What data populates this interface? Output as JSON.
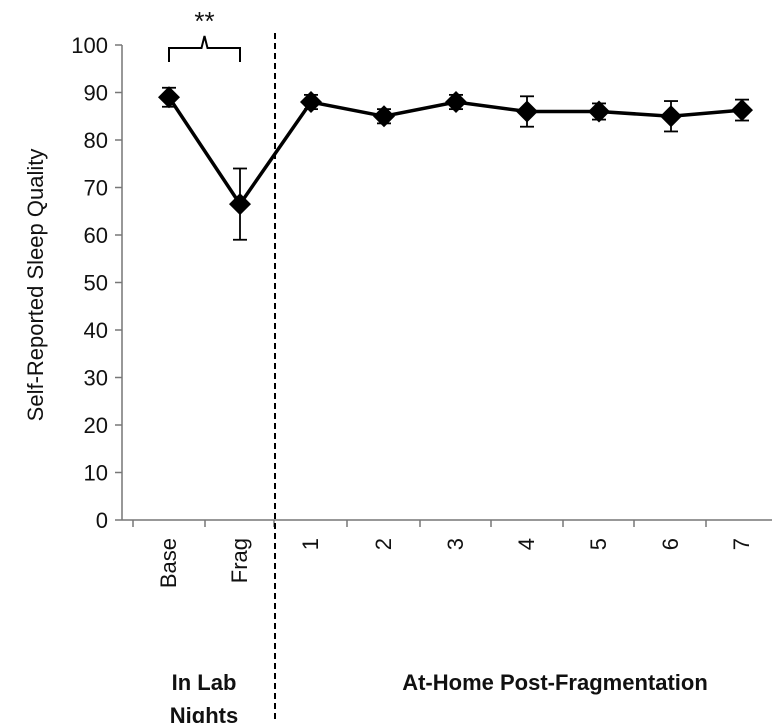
{
  "chart_data": {
    "type": "line",
    "title": "",
    "ylabel": "Self-Reported Sleep Quality",
    "ylim": [
      0,
      100
    ],
    "yticks": [
      0,
      10,
      20,
      30,
      40,
      50,
      60,
      70,
      80,
      90,
      100
    ],
    "categories": [
      "Base",
      "Frag",
      "1",
      "2",
      "3",
      "4",
      "5",
      "6",
      "7"
    ],
    "series": [
      {
        "values": [
          89,
          66.5,
          88,
          85,
          88,
          86,
          86,
          85,
          86.3
        ],
        "error": [
          2,
          7.5,
          1.5,
          1.5,
          1.5,
          3.2,
          1.7,
          3.2,
          2.2
        ]
      }
    ],
    "groups": [
      {
        "label_lines": [
          "In Lab",
          "Nights"
        ]
      },
      {
        "label_lines": [
          "At-Home Post-Fragmentation"
        ]
      }
    ],
    "significance": {
      "text": "**"
    },
    "grid": false,
    "legend": "none",
    "colors": {
      "line": "#000000",
      "marker": "#000000",
      "text": "#111111"
    }
  }
}
